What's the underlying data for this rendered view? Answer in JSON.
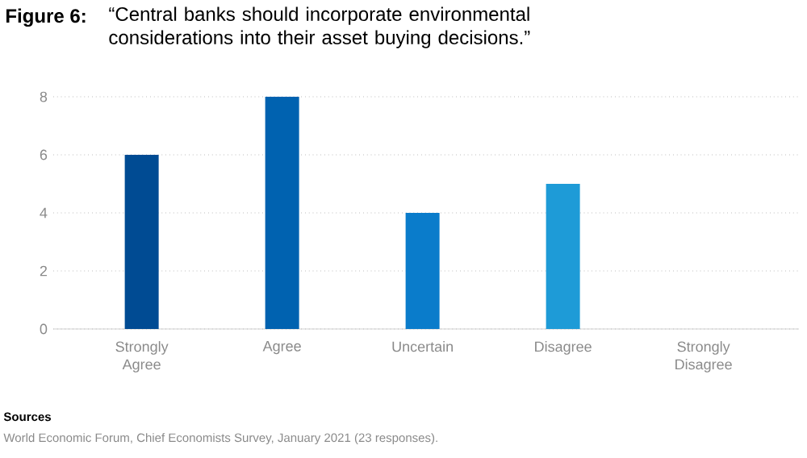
{
  "chart_data": {
    "type": "bar",
    "title": "Figure 6:",
    "subtitle": "“Central banks should incorporate environmental considerations into their asset buying decisions.”",
    "categories": [
      "Strongly Agree",
      "Agree",
      "Uncertain",
      "Disagree",
      "Strongly Disagree"
    ],
    "values": [
      6,
      8,
      4,
      5,
      0
    ],
    "colors": [
      "#004b93",
      "#0062b0",
      "#0a7ccb",
      "#1e9bd7",
      "#3fb0e3"
    ],
    "ylim": [
      0,
      8
    ],
    "yticks": [
      0,
      2,
      4,
      6,
      8
    ],
    "grid": "y",
    "annotations": [
      "Sources",
      "World Economic Forum, Chief Economists Survey, January 2021 (23 responses)."
    ]
  }
}
